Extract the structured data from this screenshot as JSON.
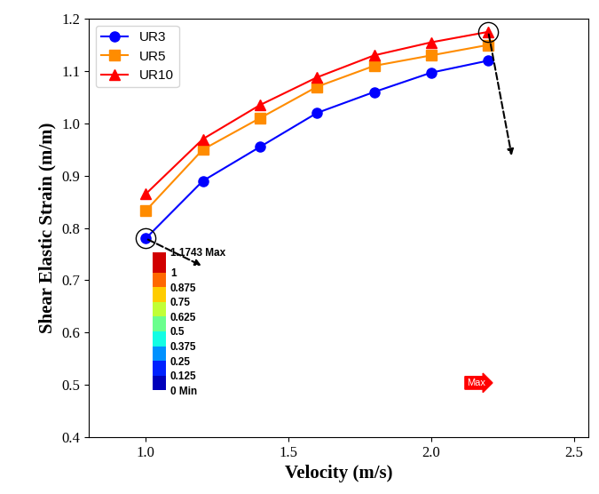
{
  "chart_data": {
    "type": "line",
    "x_label": "Velocity (m/s)",
    "y_label": "Shear Elastic Strain (m/m)",
    "x": [
      1.0,
      1.2,
      1.4,
      1.6,
      1.8,
      2.0,
      2.2
    ],
    "series": [
      {
        "name": "UR3",
        "color": "#0000ff",
        "marker": "circle",
        "line_style": "solid",
        "values": [
          0.78,
          0.89,
          0.955,
          1.02,
          1.06,
          1.097,
          1.12
        ]
      },
      {
        "name": "UR5",
        "color": "#ff8c00",
        "marker": "square",
        "line_style": "solid",
        "values": [
          0.833,
          0.95,
          1.01,
          1.07,
          1.11,
          1.13,
          1.15
        ]
      },
      {
        "name": "UR10",
        "color": "#ff0000",
        "marker": "triangle",
        "line_style": "solid",
        "values": [
          0.865,
          0.97,
          1.035,
          1.088,
          1.13,
          1.155,
          1.175
        ]
      }
    ],
    "xlim": [
      0.8,
      2.55
    ],
    "xticks": [
      1.0,
      1.5,
      2.0,
      2.5
    ],
    "ylim": [
      0.4,
      1.2
    ],
    "yticks": [
      0.4,
      0.5,
      0.6,
      0.7,
      0.8,
      0.9,
      1.0,
      1.1,
      1.2
    ],
    "grid": false,
    "legend": "upper left",
    "colorbar": {
      "range": [
        0,
        1.1743
      ],
      "ticks": [
        {
          "value": 0,
          "label": "0 Min"
        },
        0.125,
        0.25,
        0.375,
        0.5,
        0.625,
        0.75,
        0.875,
        1,
        {
          "value": 1.1743,
          "label": "1.1743 Max"
        }
      ]
    },
    "annotations": [
      "Max"
    ]
  }
}
